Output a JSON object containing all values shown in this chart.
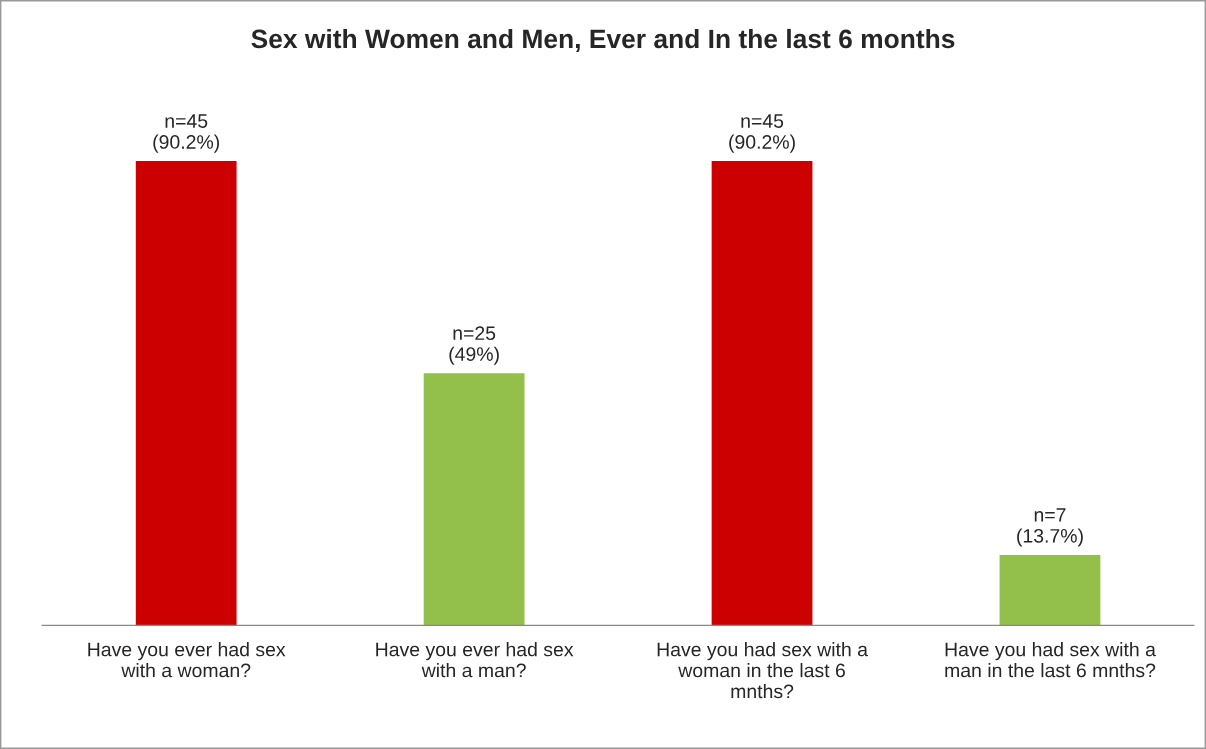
{
  "chart_data": {
    "type": "bar",
    "title": "Sex with Women and Men, Ever and In the last 6 months",
    "categories": [
      "Have you ever had sex\nwith a woman?",
      "Have you ever had sex\nwith a man?",
      "Have you had sex with a\nwoman in the last 6\nmnths?",
      "Have you had sex with a\nman in the last 6 mnths?"
    ],
    "values": [
      90.2,
      49,
      90.2,
      13.7
    ],
    "colors": [
      "#cc0000",
      "#92c04a",
      "#cc0000",
      "#92c04a"
    ],
    "tick_labels": "x",
    "value_labels": [
      "n=45\n(90.2%)",
      "n=25\n(49%)",
      "n=45\n(90.2%)",
      "n=7\n(13.7%)"
    ],
    "grid": false,
    "legend": false
  }
}
